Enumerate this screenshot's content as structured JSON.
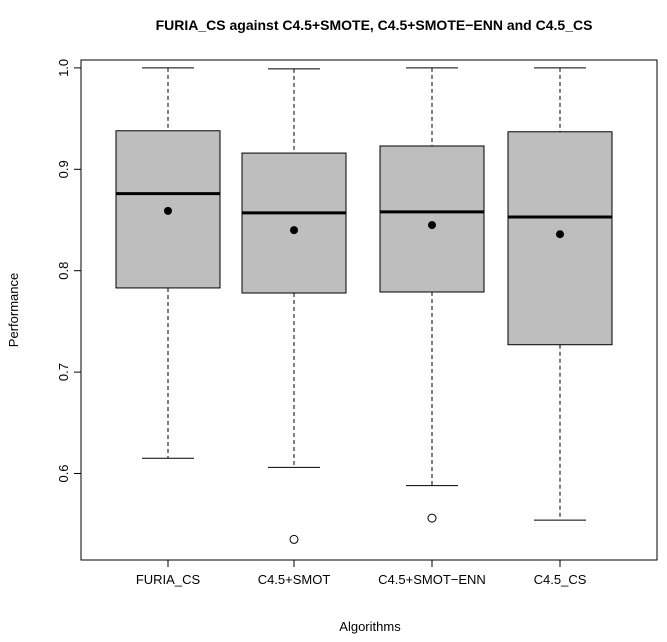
{
  "chart_data": {
    "type": "box",
    "title": "FURIA_CS against C4.5+SMOTE, C4.5+SMOTE−ENN and C4.5_CS",
    "xlabel": "Algorithms",
    "ylabel": "Performance",
    "ylim": [
      0.52,
      1.02
    ],
    "yticks": [
      "0.6",
      "0.7",
      "0.8",
      "0.9",
      "1.0"
    ],
    "categories": [
      "FURIA_CS",
      "C4.5+SMOT",
      "C4.5+SMOT−ENN",
      "C4.5_CS"
    ],
    "boxes": [
      {
        "label": "FURIA_CS",
        "whisker_low": 0.615,
        "q1": 0.783,
        "median": 0.876,
        "q3": 0.938,
        "whisker_high": 1.0,
        "mean": 0.859,
        "outliers": []
      },
      {
        "label": "C4.5+SMOT",
        "whisker_low": 0.606,
        "q1": 0.778,
        "median": 0.857,
        "q3": 0.916,
        "whisker_high": 0.999,
        "mean": 0.84,
        "outliers": [
          0.535
        ]
      },
      {
        "label": "C4.5+SMOT−ENN",
        "whisker_low": 0.588,
        "q1": 0.779,
        "median": 0.858,
        "q3": 0.923,
        "whisker_high": 1.0,
        "mean": 0.845,
        "outliers": [
          0.556
        ]
      },
      {
        "label": "C4.5_CS",
        "whisker_low": 0.554,
        "q1": 0.727,
        "median": 0.853,
        "q3": 0.937,
        "whisker_high": 1.0,
        "mean": 0.836,
        "outliers": []
      }
    ],
    "colors": {
      "box_fill": "#bebebe",
      "stroke": "#000000"
    },
    "grid": false,
    "legend": "none"
  }
}
